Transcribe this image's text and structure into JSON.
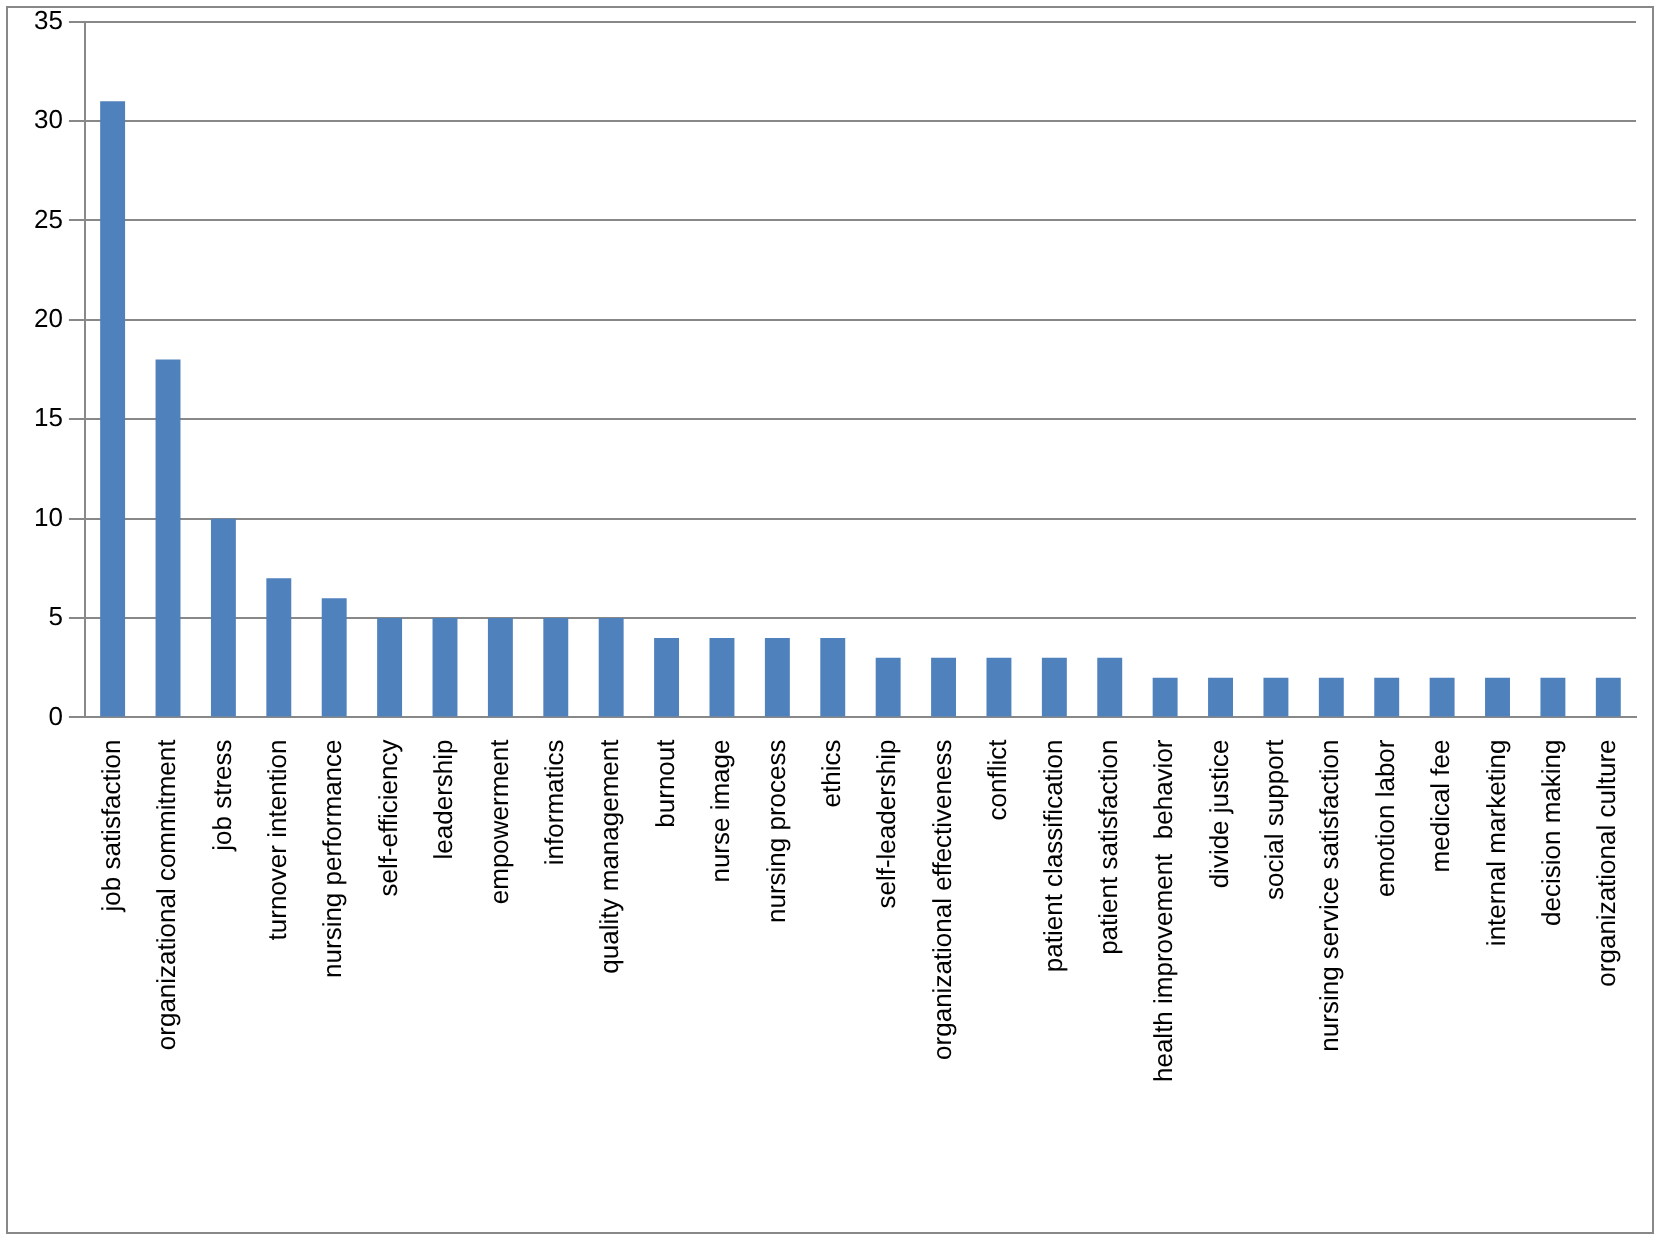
{
  "chart_data": {
    "type": "bar",
    "categories": [
      "job satisfaction",
      "organizational commitment",
      "job stress",
      "turnover intention",
      "nursing performance",
      "self-efficiency",
      "leadership",
      "empowerment",
      "informatics",
      "quality management",
      "burnout",
      "nurse image",
      "nursing process",
      "ethics",
      "self-leadership",
      "organizational effectiveness",
      "conflict",
      "patient classification",
      "patient satisfaction",
      "health improvement  behavior",
      "divide justice",
      "social support",
      "nursing service satisfaction",
      "emotion labor",
      "medical fee",
      "internal marketing",
      "decision making",
      "organizational culture"
    ],
    "values": [
      31,
      18,
      10,
      7,
      6,
      5,
      5,
      5,
      5,
      5,
      4,
      4,
      4,
      4,
      3,
      3,
      3,
      3,
      3,
      2,
      2,
      2,
      2,
      2,
      2,
      2,
      2,
      2
    ],
    "color": "#4f81bd",
    "ylim": [
      0,
      35
    ],
    "yticks": [
      0,
      5,
      10,
      15,
      20,
      25,
      30,
      35
    ],
    "grid": "y",
    "legend": false
  }
}
